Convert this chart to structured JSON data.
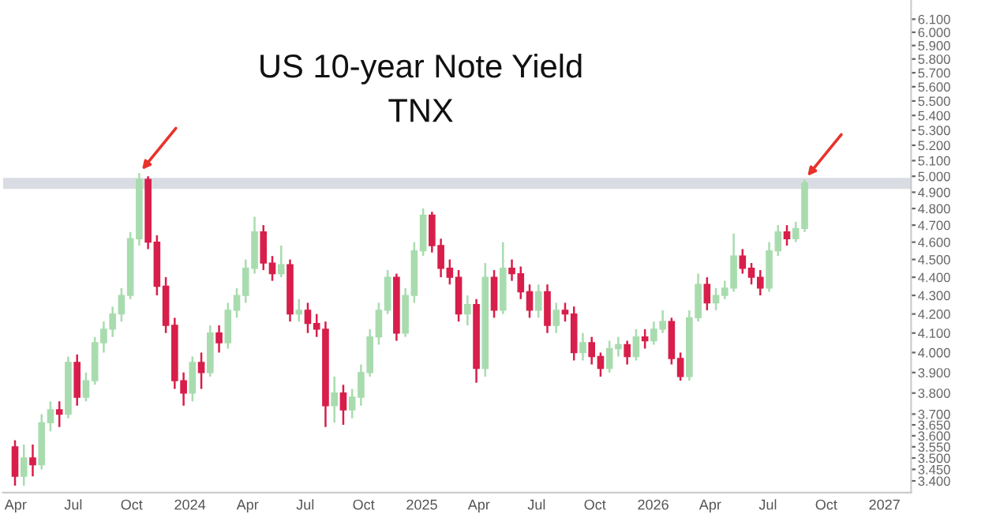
{
  "chart_data": {
    "type": "candlestick",
    "title": "US 10-year Note Yield",
    "subtitle": "TNX",
    "x": [
      "2023-03-31",
      "2023-04-14",
      "2023-04-28",
      "2023-05-12",
      "2023-05-26",
      "2023-06-09",
      "2023-06-23",
      "2023-07-07",
      "2023-07-21",
      "2023-08-04",
      "2023-08-18",
      "2023-09-01",
      "2023-09-15",
      "2023-09-29",
      "2023-10-13",
      "2023-10-27",
      "2023-11-10",
      "2023-11-24",
      "2023-12-08",
      "2023-12-22",
      "2024-01-05",
      "2024-01-19",
      "2024-02-02",
      "2024-02-16",
      "2024-03-01",
      "2024-03-15",
      "2024-03-29",
      "2024-04-12",
      "2024-04-26",
      "2024-05-10",
      "2024-05-24",
      "2024-06-07",
      "2024-06-21",
      "2024-07-05",
      "2024-07-19",
      "2024-08-02",
      "2024-08-16",
      "2024-08-30",
      "2024-09-13",
      "2024-09-27",
      "2024-10-11",
      "2024-10-25",
      "2024-11-08",
      "2024-11-22",
      "2024-12-06",
      "2024-12-20",
      "2025-01-03",
      "2025-01-17",
      "2025-01-31",
      "2025-02-14",
      "2025-02-28",
      "2025-03-14",
      "2025-03-28",
      "2025-04-11",
      "2025-04-25",
      "2025-05-09",
      "2025-05-23",
      "2025-06-06",
      "2025-06-20",
      "2025-07-04",
      "2025-07-18",
      "2025-08-01",
      "2025-08-15",
      "2025-08-29",
      "2025-09-12",
      "2025-09-26",
      "2025-10-10",
      "2025-10-24",
      "2025-11-07",
      "2025-11-21",
      "2025-12-05",
      "2025-12-19",
      "2026-01-02",
      "2026-01-16",
      "2026-01-30",
      "2026-02-13",
      "2026-02-27",
      "2026-03-13",
      "2026-03-27",
      "2026-04-10",
      "2026-04-24",
      "2026-05-08",
      "2026-05-22",
      "2026-06-05",
      "2026-06-19",
      "2026-07-03",
      "2026-07-17",
      "2026-07-31",
      "2026-08-14",
      "2026-08-28"
    ],
    "ohlc": [
      [
        3.55,
        3.58,
        3.38,
        3.42
      ],
      [
        3.42,
        3.56,
        3.38,
        3.5
      ],
      [
        3.5,
        3.56,
        3.42,
        3.47
      ],
      [
        3.47,
        3.7,
        3.45,
        3.66
      ],
      [
        3.66,
        3.76,
        3.62,
        3.72
      ],
      [
        3.72,
        3.76,
        3.64,
        3.7
      ],
      [
        3.7,
        3.98,
        3.68,
        3.95
      ],
      [
        3.95,
        3.99,
        3.74,
        3.78
      ],
      [
        3.78,
        3.9,
        3.76,
        3.86
      ],
      [
        3.86,
        4.08,
        3.84,
        4.05
      ],
      [
        4.05,
        4.16,
        4.0,
        4.12
      ],
      [
        4.12,
        4.24,
        4.08,
        4.2
      ],
      [
        4.2,
        4.34,
        4.16,
        4.3
      ],
      [
        4.3,
        4.66,
        4.28,
        4.62
      ],
      [
        4.62,
        5.02,
        4.58,
        4.98
      ],
      [
        4.98,
        5.0,
        4.56,
        4.6
      ],
      [
        4.6,
        4.64,
        4.3,
        4.35
      ],
      [
        4.35,
        4.4,
        4.1,
        4.14
      ],
      [
        4.14,
        4.18,
        3.82,
        3.86
      ],
      [
        3.86,
        3.9,
        3.74,
        3.8
      ],
      [
        3.8,
        3.98,
        3.76,
        3.95
      ],
      [
        3.95,
        4.0,
        3.82,
        3.9
      ],
      [
        3.9,
        4.14,
        3.88,
        4.1
      ],
      [
        4.1,
        4.14,
        4.0,
        4.05
      ],
      [
        4.05,
        4.26,
        4.02,
        4.22
      ],
      [
        4.22,
        4.34,
        4.18,
        4.3
      ],
      [
        4.3,
        4.5,
        4.26,
        4.45
      ],
      [
        4.45,
        4.75,
        4.42,
        4.66
      ],
      [
        4.66,
        4.7,
        4.44,
        4.48
      ],
      [
        4.48,
        4.52,
        4.38,
        4.42
      ],
      [
        4.42,
        4.58,
        4.4,
        4.47
      ],
      [
        4.47,
        4.5,
        4.16,
        4.2
      ],
      [
        4.2,
        4.28,
        4.16,
        4.22
      ],
      [
        4.22,
        4.26,
        4.1,
        4.15
      ],
      [
        4.15,
        4.2,
        4.08,
        4.12
      ],
      [
        4.12,
        4.16,
        3.64,
        3.74
      ],
      [
        3.74,
        3.88,
        3.66,
        3.8
      ],
      [
        3.8,
        3.84,
        3.65,
        3.72
      ],
      [
        3.72,
        3.82,
        3.68,
        3.78
      ],
      [
        3.78,
        3.94,
        3.74,
        3.9
      ],
      [
        3.9,
        4.12,
        3.88,
        4.08
      ],
      [
        4.08,
        4.26,
        4.04,
        4.22
      ],
      [
        4.22,
        4.44,
        4.2,
        4.4
      ],
      [
        4.4,
        4.42,
        4.06,
        4.1
      ],
      [
        4.1,
        4.34,
        4.08,
        4.3
      ],
      [
        4.3,
        4.6,
        4.26,
        4.55
      ],
      [
        4.55,
        4.8,
        4.52,
        4.76
      ],
      [
        4.76,
        4.78,
        4.54,
        4.58
      ],
      [
        4.58,
        4.62,
        4.4,
        4.45
      ],
      [
        4.45,
        4.5,
        4.36,
        4.4
      ],
      [
        4.4,
        4.44,
        4.16,
        4.2
      ],
      [
        4.2,
        4.3,
        4.14,
        4.25
      ],
      [
        4.25,
        4.28,
        3.85,
        3.92
      ],
      [
        3.92,
        4.48,
        3.88,
        4.4
      ],
      [
        4.4,
        4.44,
        4.18,
        4.22
      ],
      [
        4.22,
        4.6,
        4.2,
        4.45
      ],
      [
        4.45,
        4.5,
        4.38,
        4.42
      ],
      [
        4.42,
        4.46,
        4.28,
        4.32
      ],
      [
        4.32,
        4.36,
        4.18,
        4.22
      ],
      [
        4.22,
        4.36,
        4.18,
        4.32
      ],
      [
        4.32,
        4.36,
        4.1,
        4.14
      ],
      [
        4.14,
        4.26,
        4.1,
        4.22
      ],
      [
        4.22,
        4.26,
        4.16,
        4.2
      ],
      [
        4.2,
        4.24,
        3.96,
        4.0
      ],
      [
        4.0,
        4.1,
        3.96,
        4.05
      ],
      [
        4.05,
        4.08,
        3.94,
        3.98
      ],
      [
        3.98,
        4.0,
        3.88,
        3.92
      ],
      [
        3.92,
        4.06,
        3.9,
        4.02
      ],
      [
        4.02,
        4.08,
        3.98,
        4.04
      ],
      [
        4.04,
        4.06,
        3.94,
        3.98
      ],
      [
        3.98,
        4.12,
        3.96,
        4.08
      ],
      [
        4.08,
        4.12,
        4.02,
        4.06
      ],
      [
        4.06,
        4.16,
        4.04,
        4.12
      ],
      [
        4.12,
        4.22,
        4.1,
        4.16
      ],
      [
        4.16,
        4.18,
        3.94,
        3.97
      ],
      [
        3.97,
        4.0,
        3.86,
        3.88
      ],
      [
        3.88,
        4.22,
        3.86,
        4.18
      ],
      [
        4.18,
        4.42,
        4.16,
        4.36
      ],
      [
        4.36,
        4.4,
        4.22,
        4.26
      ],
      [
        4.26,
        4.34,
        4.22,
        4.3
      ],
      [
        4.3,
        4.38,
        4.28,
        4.34
      ],
      [
        4.34,
        4.65,
        4.32,
        4.52
      ],
      [
        4.52,
        4.56,
        4.42,
        4.45
      ],
      [
        4.45,
        4.48,
        4.36,
        4.4
      ],
      [
        4.4,
        4.44,
        4.3,
        4.34
      ],
      [
        4.34,
        4.6,
        4.32,
        4.55
      ],
      [
        4.55,
        4.7,
        4.52,
        4.66
      ],
      [
        4.66,
        4.7,
        4.58,
        4.62
      ],
      [
        4.62,
        4.72,
        4.6,
        4.68
      ],
      [
        4.68,
        4.98,
        4.66,
        4.96
      ]
    ],
    "colors": [
      "#d81e4a",
      "#a8dcae",
      "#d81e4a",
      "#a8dcae",
      "#a8dcae",
      "#d81e4a",
      "#a8dcae",
      "#d81e4a",
      "#a8dcae",
      "#a8dcae",
      "#a8dcae",
      "#a8dcae",
      "#a8dcae",
      "#a8dcae",
      "#a8dcae",
      "#d81e4a",
      "#d81e4a",
      "#d81e4a",
      "#d81e4a",
      "#d81e4a",
      "#a8dcae",
      "#d81e4a",
      "#a8dcae",
      "#d81e4a",
      "#a8dcae",
      "#a8dcae",
      "#a8dcae",
      "#a8dcae",
      "#d81e4a",
      "#d81e4a",
      "#a8dcae",
      "#d81e4a",
      "#a8dcae",
      "#d81e4a",
      "#d81e4a",
      "#d81e4a",
      "#a8dcae",
      "#d81e4a",
      "#a8dcae",
      "#a8dcae",
      "#a8dcae",
      "#a8dcae",
      "#a8dcae",
      "#d81e4a",
      "#a8dcae",
      "#a8dcae",
      "#a8dcae",
      "#d81e4a",
      "#d81e4a",
      "#d81e4a",
      "#d81e4a",
      "#a8dcae",
      "#d81e4a",
      "#a8dcae",
      "#d81e4a",
      "#a8dcae",
      "#d81e4a",
      "#d81e4a",
      "#d81e4a",
      "#a8dcae",
      "#d81e4a",
      "#a8dcae",
      "#d81e4a",
      "#d81e4a",
      "#a8dcae",
      "#d81e4a",
      "#d81e4a",
      "#a8dcae",
      "#a8dcae",
      "#d81e4a",
      "#a8dcae",
      "#d81e4a",
      "#a8dcae",
      "#a8dcae",
      "#d81e4a",
      "#d81e4a",
      "#a8dcae",
      "#a8dcae",
      "#d81e4a",
      "#a8dcae",
      "#a8dcae",
      "#a8dcae",
      "#d81e4a",
      "#d81e4a",
      "#d81e4a",
      "#a8dcae",
      "#a8dcae",
      "#d81e4a",
      "#a8dcae",
      "#a8dcae"
    ],
    "xlim": [
      "2023-03-12",
      "2027-02-12"
    ],
    "xticks": [
      {
        "value": "2023-04-01",
        "label": "Apr"
      },
      {
        "value": "2023-07-01",
        "label": "Jul"
      },
      {
        "value": "2023-10-01",
        "label": "Oct"
      },
      {
        "value": "2024-01-01",
        "label": "2024"
      },
      {
        "value": "2024-04-01",
        "label": "Apr"
      },
      {
        "value": "2024-07-01",
        "label": "Jul"
      },
      {
        "value": "2024-10-01",
        "label": "Oct"
      },
      {
        "value": "2025-01-01",
        "label": "2025"
      },
      {
        "value": "2025-04-01",
        "label": "Apr"
      },
      {
        "value": "2025-07-01",
        "label": "Jul"
      },
      {
        "value": "2025-10-01",
        "label": "Oct"
      },
      {
        "value": "2026-01-01",
        "label": "2026"
      },
      {
        "value": "2026-04-01",
        "label": "Apr"
      },
      {
        "value": "2026-07-01",
        "label": "Jul"
      },
      {
        "value": "2026-10-01",
        "label": "Oct"
      },
      {
        "value": "2027-01-01",
        "label": "2027"
      }
    ],
    "log": "y",
    "ylim": [
      3.35,
      6.25
    ],
    "yticks": [
      {
        "value": 3.4,
        "label": "3.400"
      },
      {
        "value": 3.45,
        "label": "3.450"
      },
      {
        "value": 3.5,
        "label": "3.500"
      },
      {
        "value": 3.55,
        "label": "3.550"
      },
      {
        "value": 3.6,
        "label": "3.600"
      },
      {
        "value": 3.65,
        "label": "3.650"
      },
      {
        "value": 3.7,
        "label": "3.700"
      },
      {
        "value": 3.8,
        "label": "3.800"
      },
      {
        "value": 3.9,
        "label": "3.900"
      },
      {
        "value": 4.0,
        "label": "4.000"
      },
      {
        "value": 4.1,
        "label": "4.100"
      },
      {
        "value": 4.2,
        "label": "4.200"
      },
      {
        "value": 4.3,
        "label": "4.300"
      },
      {
        "value": 4.4,
        "label": "4.400"
      },
      {
        "value": 4.5,
        "label": "4.500"
      },
      {
        "value": 4.6,
        "label": "4.600"
      },
      {
        "value": 4.7,
        "label": "4.700"
      },
      {
        "value": 4.8,
        "label": "4.800"
      },
      {
        "value": 4.9,
        "label": "4.900"
      },
      {
        "value": 5.0,
        "label": "5.000"
      },
      {
        "value": 5.1,
        "label": "5.100"
      },
      {
        "value": 5.2,
        "label": "5.200"
      },
      {
        "value": 5.3,
        "label": "5.300"
      },
      {
        "value": 5.4,
        "label": "5.400"
      },
      {
        "value": 5.5,
        "label": "5.500"
      },
      {
        "value": 5.6,
        "label": "5.600"
      },
      {
        "value": 5.7,
        "label": "5.700"
      },
      {
        "value": 5.8,
        "label": "5.800"
      },
      {
        "value": 5.9,
        "label": "5.900"
      },
      {
        "value": 6.0,
        "label": "6.000"
      },
      {
        "value": 6.1,
        "label": "6.100"
      }
    ],
    "bands": [
      {
        "axis": "y",
        "from": 4.92,
        "to": 4.99,
        "color": "#d9dde3"
      }
    ],
    "grid": false,
    "legend": false
  }
}
